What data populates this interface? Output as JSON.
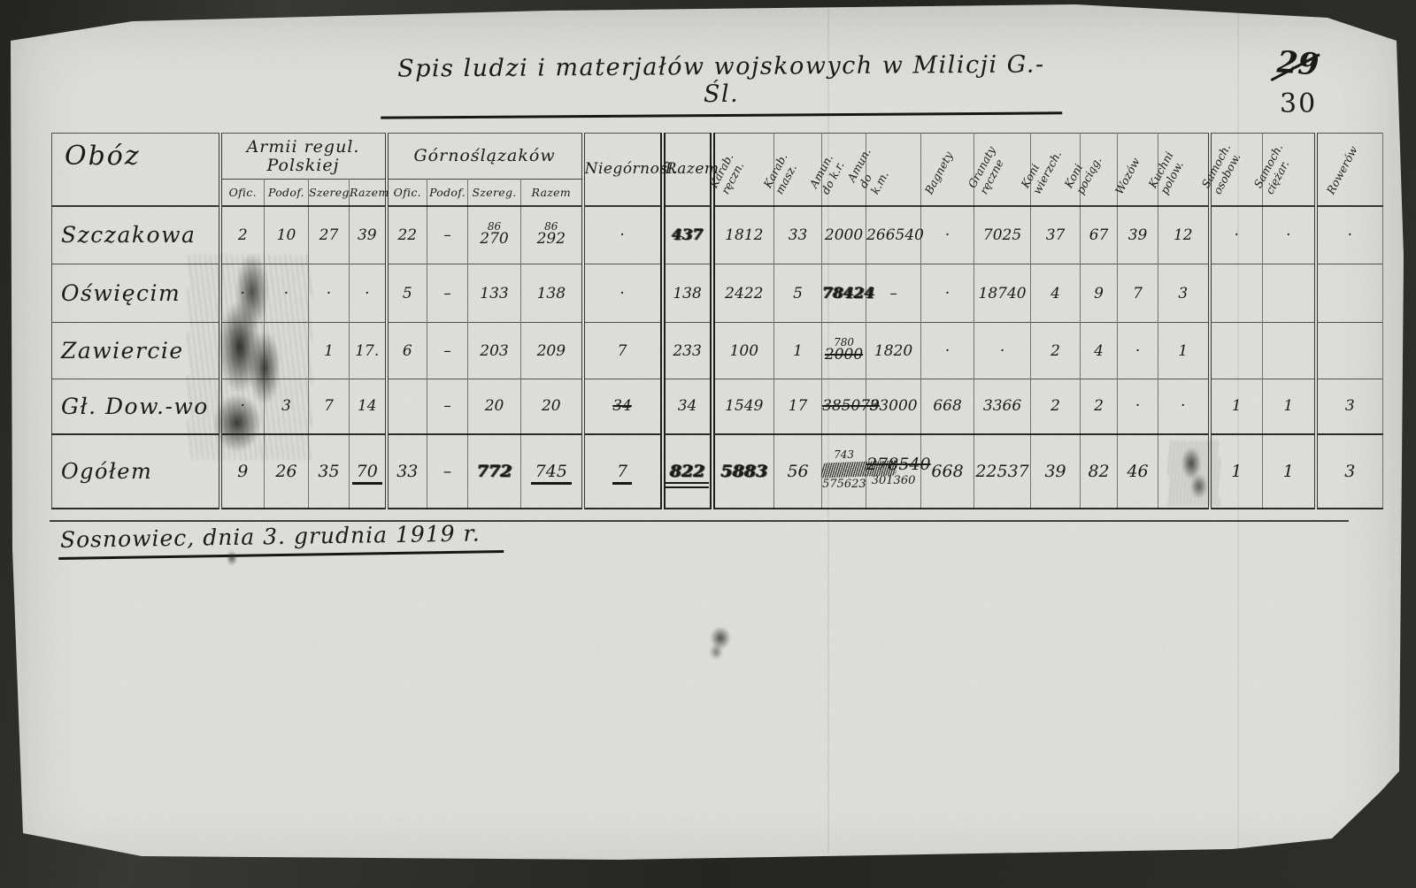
{
  "scan_marks": {
    "page_number_struck": "29",
    "page_number": "30"
  },
  "document": {
    "title": "Spis ludzi i materjałów wojskowych w Milicji G.- Śl.",
    "dateline": "Sosnowiec, dnia 3. grudnia 1919 r."
  },
  "table": {
    "corner_header": "Obóz",
    "group_armii": "Armii regul. Polskiej",
    "group_gornosl": "Górnoślązaków",
    "col_niegornosl": "Niegórnośl.",
    "col_razem": "Razem",
    "sub_headers": [
      "Ofic.",
      "Podof.",
      "Szereg.",
      "Razem",
      "Ofic.",
      "Podof.",
      "Szereg.",
      "Razem"
    ],
    "rotated_headers": [
      "Karab.\nręczn.",
      "Karab.\nmasz.",
      "Amun.\ndo k.r.",
      "Amun.\ndo k.m.",
      "Bagnety",
      "Granaty\nręczne",
      "Koni\nwierzch.",
      "Koni\npociąg.",
      "Wozów",
      "Kuchni\npolow.",
      "Samoch.\nosobow.",
      "Samoch.\nciężar.",
      "Rowerów"
    ],
    "rows": [
      {
        "name": "Szczakowa",
        "cells": [
          "2",
          "10",
          "27",
          "39",
          "22",
          "–",
          {
            "t": "270",
            "a": "86"
          },
          {
            "t": "292",
            "a": "86"
          },
          "·",
          {
            "t": "437",
            "ow": true
          },
          "1812",
          "33",
          "2000",
          "266540",
          "·",
          "7025",
          "37",
          "67",
          "39",
          "12",
          "·",
          "·",
          "·"
        ]
      },
      {
        "name": "Oświęcim",
        "cells": [
          "·",
          "·",
          "·",
          "·",
          "5",
          "–",
          "133",
          "138",
          "·",
          "138",
          "2422",
          "5",
          {
            "t": "78424",
            "ow": true
          },
          "–",
          "·",
          "18740",
          "4",
          "9",
          "7",
          "3",
          "",
          "",
          ""
        ]
      },
      {
        "name": "Zawiercie",
        "cells": [
          "",
          "",
          "1",
          "17.",
          "6",
          "–",
          "203",
          "209",
          "7",
          "233",
          "100",
          "1",
          {
            "t": "2000",
            "a": "780",
            "s": true
          },
          "1820",
          "·",
          "·",
          "2",
          "4",
          "·",
          "1",
          "",
          "",
          ""
        ]
      },
      {
        "name": "Gł. Dow.-wo",
        "cells": [
          "·",
          "3",
          "7",
          "14",
          "",
          "–",
          "20",
          "20",
          {
            "t": "34",
            "s": true
          },
          "34",
          "1549",
          "17",
          {
            "t": "385079",
            "s": true
          },
          "33000",
          "668",
          "3366",
          "2",
          "2",
          "·",
          "·",
          "1",
          "1",
          "3"
        ]
      },
      {
        "name": "Ogółem",
        "cells": [
          "9",
          "26",
          "35",
          {
            "t": "70",
            "u": "single"
          },
          "33",
          "–",
          {
            "t": "772",
            "ow": true
          },
          {
            "t": "745",
            "u": "single"
          },
          {
            "t": "7",
            "u": "single"
          },
          {
            "t": "822",
            "ow": true,
            "u": "double"
          },
          {
            "t": "5883",
            "ow": true
          },
          "56",
          {
            "a": "743",
            "scribble": true,
            "b": "575623"
          },
          {
            "t": "278540",
            "s": true,
            "b": "301360"
          },
          "668",
          "22537",
          "39",
          "82",
          "46",
          "",
          "1",
          "1",
          "3"
        ]
      }
    ]
  }
}
